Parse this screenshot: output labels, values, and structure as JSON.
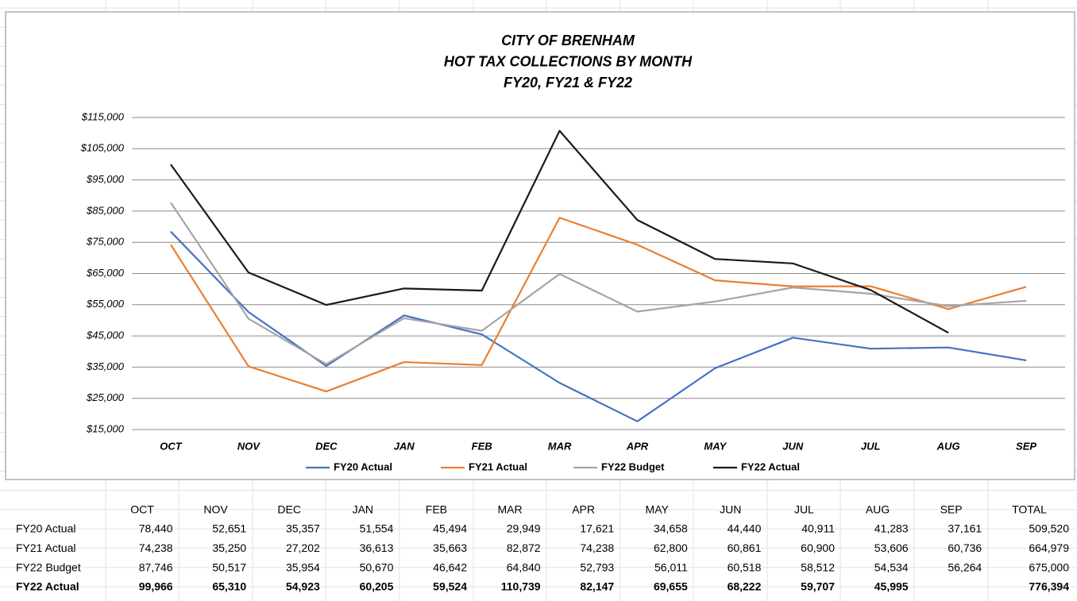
{
  "chart_data": {
    "type": "line",
    "title": [
      "CITY OF BRENHAM",
      "HOT TAX COLLECTIONS BY MONTH",
      "FY20, FY21 & FY22"
    ],
    "categories": [
      "OCT",
      "NOV",
      "DEC",
      "JAN",
      "FEB",
      "MAR",
      "APR",
      "MAY",
      "JUN",
      "JUL",
      "AUG",
      "SEP"
    ],
    "series": [
      {
        "name": "FY20 Actual",
        "color": "#4472c4",
        "values": [
          78440,
          52651,
          35357,
          51554,
          45494,
          29949,
          17621,
          34658,
          44440,
          40911,
          41283,
          37161
        ]
      },
      {
        "name": "FY21 Actual",
        "color": "#ed7d31",
        "values": [
          74238,
          35250,
          27202,
          36613,
          35663,
          82872,
          74238,
          62800,
          60861,
          60900,
          53606,
          60736
        ]
      },
      {
        "name": "FY22 Budget",
        "color": "#a5a5a5",
        "values": [
          87746,
          50517,
          35954,
          50670,
          46642,
          64840,
          52793,
          56011,
          60518,
          58512,
          54534,
          56264
        ]
      },
      {
        "name": "FY22 Actual",
        "color": "#1a1a1a",
        "values": [
          99966,
          65310,
          54923,
          60205,
          59524,
          110739,
          82147,
          69655,
          68222,
          59707,
          45995,
          null
        ]
      }
    ],
    "ylim": [
      15000,
      115000
    ],
    "yticks": [
      {
        "value": 15000,
        "label": "$15,000"
      },
      {
        "value": 25000,
        "label": "$25,000"
      },
      {
        "value": 35000,
        "label": "$35,000"
      },
      {
        "value": 45000,
        "label": "$45,000"
      },
      {
        "value": 55000,
        "label": "$55,000"
      },
      {
        "value": 65000,
        "label": "$65,000"
      },
      {
        "value": 75000,
        "label": "$75,000"
      },
      {
        "value": 85000,
        "label": "$85,000"
      },
      {
        "value": 95000,
        "label": "$95,000"
      },
      {
        "value": 105000,
        "label": "$105,000"
      },
      {
        "value": 115000,
        "label": "$115,000"
      }
    ],
    "grid": true,
    "legend": "bottom"
  },
  "table": {
    "columns": [
      "OCT",
      "NOV",
      "DEC",
      "JAN",
      "FEB",
      "MAR",
      "APR",
      "MAY",
      "JUN",
      "JUL",
      "AUG",
      "SEP",
      "TOTAL"
    ],
    "rows": [
      {
        "label": "FY20 Actual",
        "cells": [
          "78,440",
          "52,651",
          "35,357",
          "51,554",
          "45,494",
          "29,949",
          "17,621",
          "34,658",
          "44,440",
          "40,911",
          "41,283",
          "37,161",
          "509,520"
        ]
      },
      {
        "label": "FY21 Actual",
        "cells": [
          "74,238",
          "35,250",
          "27,202",
          "36,613",
          "35,663",
          "82,872",
          "74,238",
          "62,800",
          "60,861",
          "60,900",
          "53,606",
          "60,736",
          "664,979"
        ]
      },
      {
        "label": "FY22 Budget",
        "cells": [
          "87,746",
          "50,517",
          "35,954",
          "50,670",
          "46,642",
          "64,840",
          "52,793",
          "56,011",
          "60,518",
          "58,512",
          "54,534",
          "56,264",
          "675,000"
        ]
      },
      {
        "label": "FY22 Actual",
        "cells": [
          "99,966",
          "65,310",
          "54,923",
          "60,205",
          "59,524",
          "110,739",
          "82,147",
          "69,655",
          "68,222",
          "59,707",
          "45,995",
          null,
          "776,394"
        ]
      }
    ]
  }
}
